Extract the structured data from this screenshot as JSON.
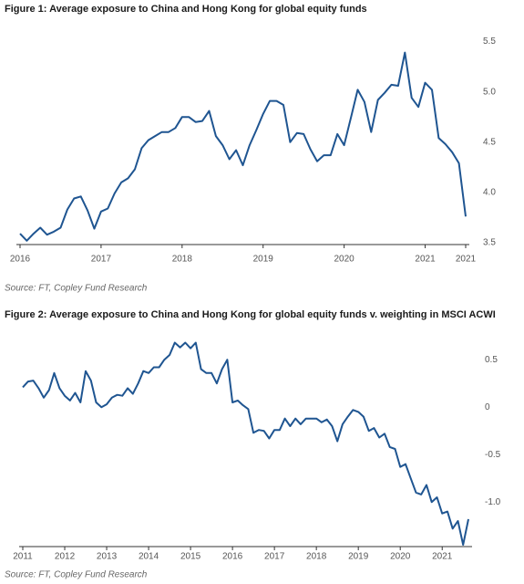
{
  "chart_data": [
    {
      "type": "line",
      "title": "Figure 1: Average exposure to China and Hong Kong for global equity funds",
      "note": "Source: FT, Copley Fund Research",
      "categories": [
        "2016",
        null,
        null,
        null,
        null,
        null,
        null,
        null,
        null,
        null,
        null,
        null,
        "2017",
        null,
        null,
        null,
        null,
        null,
        null,
        null,
        null,
        null,
        null,
        null,
        "2018",
        null,
        null,
        null,
        null,
        null,
        null,
        null,
        null,
        null,
        null,
        null,
        "2019",
        null,
        null,
        null,
        null,
        null,
        null,
        null,
        null,
        null,
        null,
        null,
        "2020",
        null,
        null,
        null,
        null,
        null,
        null,
        null,
        null,
        null,
        null,
        null,
        "2021",
        null,
        null,
        null,
        null,
        null,
        "2021"
      ],
      "series": [
        {
          "name": "Average exposure",
          "color": "#1f5591",
          "values": [
            3.59,
            3.52,
            3.59,
            3.65,
            3.58,
            3.61,
            3.65,
            3.83,
            3.94,
            3.96,
            3.82,
            3.64,
            3.81,
            3.84,
            3.99,
            4.1,
            4.14,
            4.23,
            4.44,
            4.52,
            4.56,
            4.6,
            4.6,
            4.64,
            4.75,
            4.75,
            4.7,
            4.71,
            4.81,
            4.56,
            4.47,
            4.33,
            4.42,
            4.27,
            4.47,
            4.62,
            4.78,
            4.91,
            4.91,
            4.87,
            4.5,
            4.59,
            4.58,
            4.43,
            4.31,
            4.37,
            4.37,
            4.58,
            4.47,
            4.74,
            5.02,
            4.9,
            4.6,
            4.92,
            4.99,
            5.07,
            5.06,
            5.39,
            4.94,
            4.85,
            5.09,
            5.02,
            4.54,
            4.48,
            4.4,
            4.29,
            3.76
          ]
        }
      ],
      "ylim": [
        3.5,
        5.55
      ],
      "yticks": [
        3.5,
        {
          "value": 4,
          "label": "4.0"
        },
        4.5,
        {
          "value": 5,
          "label": "5.0"
        },
        5.5
      ],
      "grid": false
    },
    {
      "type": "line",
      "title": "Figure 2: Average exposure to China and Hong Kong for global equity funds v. weighting in MSCI ACWI",
      "note": "Source: FT, Copley Fund Research",
      "categories": [
        "2011",
        null,
        null,
        null,
        null,
        null,
        null,
        null,
        "2012",
        null,
        null,
        null,
        null,
        null,
        null,
        null,
        "2013",
        null,
        null,
        null,
        null,
        null,
        null,
        null,
        "2014",
        null,
        null,
        null,
        null,
        null,
        null,
        null,
        "2015",
        null,
        null,
        null,
        null,
        null,
        null,
        null,
        "2016",
        null,
        null,
        null,
        null,
        null,
        null,
        null,
        "2017",
        null,
        null,
        null,
        null,
        null,
        null,
        null,
        "2018",
        null,
        null,
        null,
        null,
        null,
        null,
        null,
        "2019",
        null,
        null,
        null,
        null,
        null,
        null,
        null,
        "2020",
        null,
        null,
        null,
        null,
        null,
        null,
        null,
        "2021",
        null,
        null,
        null,
        null,
        null
      ],
      "series": [
        {
          "name": "Exposure v. weighting",
          "color": "#1f5591",
          "values": [
            0.21,
            0.27,
            0.28,
            0.2,
            0.1,
            0.18,
            0.36,
            0.2,
            0.12,
            0.07,
            0.15,
            0.05,
            0.38,
            0.28,
            0.05,
            0.0,
            0.03,
            0.1,
            0.13,
            0.12,
            0.2,
            0.14,
            0.25,
            0.38,
            0.36,
            0.42,
            0.42,
            0.5,
            0.55,
            0.68,
            0.63,
            0.68,
            0.62,
            0.68,
            0.4,
            0.36,
            0.36,
            0.25,
            0.4,
            0.5,
            0.05,
            0.07,
            0.02,
            -0.02,
            -0.27,
            -0.24,
            -0.25,
            -0.33,
            -0.24,
            -0.24,
            -0.12,
            -0.2,
            -0.12,
            -0.18,
            -0.12,
            -0.12,
            -0.12,
            -0.16,
            -0.13,
            -0.2,
            -0.36,
            -0.18,
            -0.1,
            -0.03,
            -0.05,
            -0.1,
            -0.25,
            -0.22,
            -0.32,
            -0.28,
            -0.42,
            -0.44,
            -0.63,
            -0.6,
            -0.75,
            -0.9,
            -0.92,
            -0.82,
            -1.0,
            -0.95,
            -1.12,
            -1.1,
            -1.28,
            -1.2,
            -1.45,
            -1.18
          ]
        }
      ],
      "ylim": [
        -1.45,
        0.8
      ],
      "yticks": [
        0.5,
        0,
        -0.5,
        {
          "value": -1,
          "label": "-1.0"
        }
      ],
      "grid": false
    }
  ]
}
